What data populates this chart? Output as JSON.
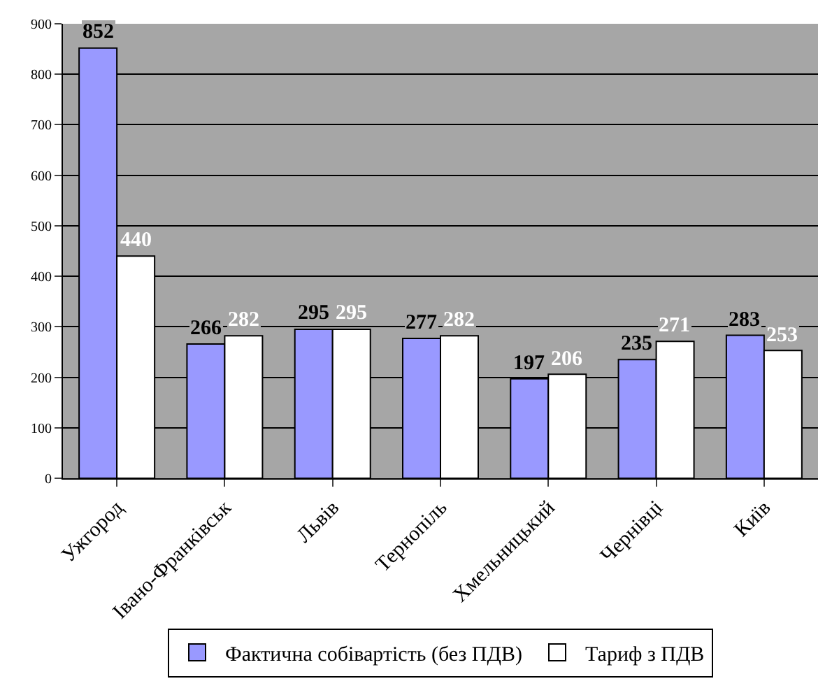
{
  "chart_data": {
    "type": "bar",
    "categories": [
      "Ужгород",
      "Івано-Франківськ",
      "Львів",
      "Тернопіль",
      "Хмельницький",
      "Чернівці",
      "Київ"
    ],
    "series": [
      {
        "name": "Фактична собівартість (без ПДВ)",
        "color": "#9999ff",
        "values": [
          852,
          266,
          295,
          277,
          197,
          235,
          283
        ]
      },
      {
        "name": "Тариф з ПДВ",
        "color": "#ffffff",
        "values": [
          440,
          282,
          295,
          282,
          206,
          271,
          253
        ]
      }
    ],
    "ylim": [
      0,
      900
    ],
    "yticks": [
      0,
      100,
      200,
      300,
      400,
      500,
      600,
      700,
      800,
      900
    ],
    "grid": "y",
    "legend": "bottom",
    "data_labels": true
  }
}
